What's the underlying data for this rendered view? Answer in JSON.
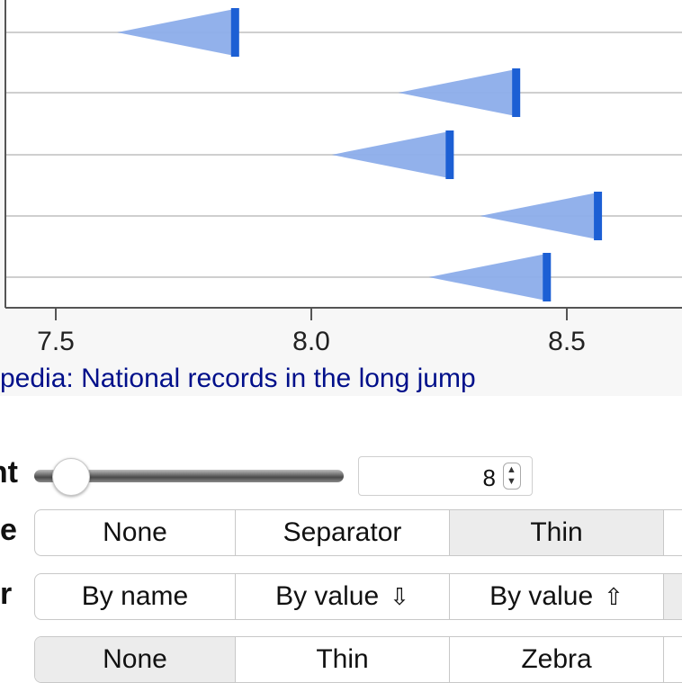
{
  "chart_data": {
    "type": "range-arrow",
    "xlim": [
      7.4,
      8.75
    ],
    "ticks": [
      7.5,
      8.0,
      8.5
    ],
    "tick_labels": [
      "7.5",
      "8.0",
      "8.5"
    ],
    "rows": [
      {
        "start": 7.62,
        "end": 7.85
      },
      {
        "start": 8.17,
        "end": 8.4
      },
      {
        "start": 8.04,
        "end": 8.27
      },
      {
        "start": 8.33,
        "end": 8.56
      },
      {
        "start": 8.23,
        "end": 8.46
      }
    ],
    "grid": true,
    "colors": {
      "fill": "#8cadea",
      "end_bar": "#1c5fd4",
      "grid": "#cfcfcf",
      "axis": "#555555"
    }
  },
  "source": {
    "text": "pedia: National records in the long jump"
  },
  "controls": {
    "count": {
      "label": "nt",
      "value": "8",
      "slider_fraction": 0.06
    },
    "style": {
      "label": "e",
      "options": [
        "None",
        "Separator",
        "Thin",
        ""
      ],
      "selected": 2
    },
    "order": {
      "label": "r",
      "options": [
        "By name",
        "By value",
        "By value",
        ""
      ],
      "icons": [
        "",
        "⇩",
        "⇧",
        ""
      ],
      "selected": 3
    },
    "stripes": {
      "label": "",
      "options": [
        "None",
        "Thin",
        "Zebra",
        ""
      ],
      "selected": 0
    }
  }
}
